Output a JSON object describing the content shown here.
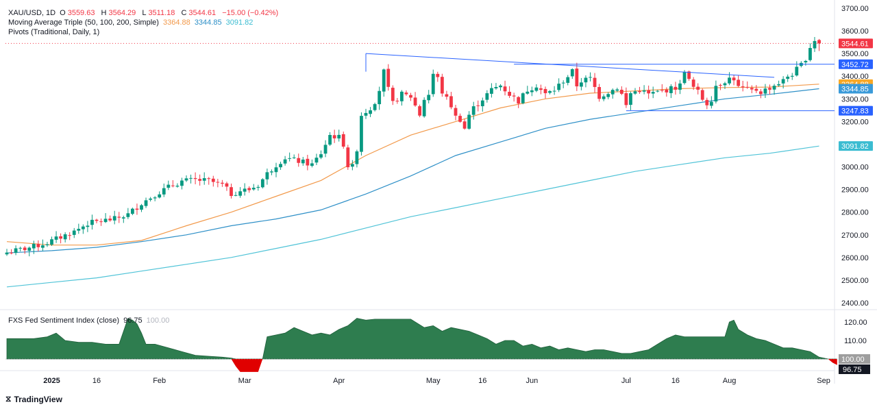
{
  "legend": {
    "symbol": "XAU/USD, 1D",
    "o_label": "O",
    "open": "3559.63",
    "h_label": "H",
    "high": "3564.29",
    "l_label": "L",
    "low": "3511.18",
    "c_label": "C",
    "close": "3544.61",
    "change": "−15.00 (−0.42%)",
    "ma_title": "Moving Average Triple (50, 100, 200, Simple)",
    "ma50": "3364.88",
    "ma100": "3344.85",
    "ma200": "3091.82",
    "pivots": "Pivots (Traditional, Daily, 1)",
    "sentiment_title": "FXS Fed Sentiment Index (close)",
    "sentiment_value": "96.75",
    "sentiment_ref": "100.00"
  },
  "watermark": "TradingView",
  "colors": {
    "up": "#089981",
    "down": "#f23645",
    "ma50": "#f2994a",
    "ma100": "#2d8fc7",
    "ma200": "#4fc3d7",
    "trend": "#2962ff",
    "sentiment_fill": "#2e7d4f",
    "sentiment_neg": "#e00000",
    "last_price": "#f23645",
    "pivot_label": "#2962ff",
    "ma50_label": "#f9a825",
    "ma100_label": "#3a9ad9",
    "ma200_label": "#3bbcd1"
  },
  "chart_data": {
    "type": "candlestick",
    "price_axis": {
      "ticks": [
        2400,
        2500,
        2600,
        2700,
        2800,
        2900,
        3000,
        3100,
        3200,
        3300,
        3400,
        3500,
        3600,
        3700
      ],
      "labels": [
        "2400.00",
        "2500.00",
        "2600.00",
        "2700.00",
        "2800.00",
        "2900.00",
        "3000.00",
        "3100.00",
        "3200.00",
        "3300.00",
        "3400.00",
        "3500.00",
        "3600.00",
        "3700.00"
      ]
    },
    "price_labels": [
      {
        "value": 3544.61,
        "text": "3544.61",
        "color": "#f23645"
      },
      {
        "value": 3452.72,
        "text": "3452.72",
        "color": "#2962ff"
      },
      {
        "value": 3364.88,
        "text": "3364.88",
        "color": "#f9a825"
      },
      {
        "value": 3344.85,
        "text": "3344.85",
        "color": "#3a9ad9"
      },
      {
        "value": 3247.83,
        "text": "3247.83",
        "color": "#2962ff"
      },
      {
        "value": 3091.82,
        "text": "3091.82",
        "color": "#3bbcd1"
      }
    ],
    "x_axis": [
      {
        "label": "2025",
        "bar": 10,
        "bold": true
      },
      {
        "label": "16",
        "bar": 20
      },
      {
        "label": "Feb",
        "bar": 34
      },
      {
        "label": "Mar",
        "bar": 53
      },
      {
        "label": "Apr",
        "bar": 74
      },
      {
        "label": "May",
        "bar": 95
      },
      {
        "label": "16",
        "bar": 106
      },
      {
        "label": "Jun",
        "bar": 117
      },
      {
        "label": "Jul",
        "bar": 138
      },
      {
        "label": "16",
        "bar": 149
      },
      {
        "label": "Aug",
        "bar": 161
      },
      {
        "label": "Sep",
        "bar": 182
      }
    ],
    "close_anchors": [
      [
        0,
        2622
      ],
      [
        3,
        2635
      ],
      [
        6,
        2648
      ],
      [
        9,
        2665
      ],
      [
        12,
        2690
      ],
      [
        15,
        2715
      ],
      [
        18,
        2750
      ],
      [
        21,
        2762
      ],
      [
        24,
        2770
      ],
      [
        27,
        2790
      ],
      [
        30,
        2840
      ],
      [
        33,
        2878
      ],
      [
        36,
        2910
      ],
      [
        39,
        2937
      ],
      [
        42,
        2942
      ],
      [
        45,
        2938
      ],
      [
        48,
        2920
      ],
      [
        50,
        2880
      ],
      [
        52,
        2895
      ],
      [
        54,
        2900
      ],
      [
        56,
        2920
      ],
      [
        58,
        2970
      ],
      [
        60,
        3010
      ],
      [
        62,
        3040
      ],
      [
        64,
        3030
      ],
      [
        66,
        3020
      ],
      [
        68,
        3010
      ],
      [
        70,
        3060
      ],
      [
        72,
        3140
      ],
      [
        74,
        3130
      ],
      [
        75,
        3100
      ],
      [
        76,
        3005
      ],
      [
        77,
        3000
      ],
      [
        78,
        3080
      ],
      [
        79,
        3230
      ],
      [
        81,
        3260
      ],
      [
        82,
        3290
      ],
      [
        83,
        3340
      ],
      [
        84,
        3420
      ],
      [
        85,
        3340
      ],
      [
        86,
        3280
      ],
      [
        88,
        3320
      ],
      [
        90,
        3310
      ],
      [
        91,
        3270
      ],
      [
        92,
        3230
      ],
      [
        93,
        3300
      ],
      [
        94,
        3320
      ],
      [
        95,
        3410
      ],
      [
        96,
        3390
      ],
      [
        97,
        3330
      ],
      [
        99,
        3270
      ],
      [
        100,
        3220
      ],
      [
        101,
        3210
      ],
      [
        102,
        3170
      ],
      [
        103,
        3230
      ],
      [
        104,
        3260
      ],
      [
        106,
        3300
      ],
      [
        108,
        3340
      ],
      [
        110,
        3360
      ],
      [
        112,
        3320
      ],
      [
        114,
        3290
      ],
      [
        116,
        3340
      ],
      [
        118,
        3360
      ],
      [
        120,
        3320
      ],
      [
        122,
        3340
      ],
      [
        124,
        3380
      ],
      [
        126,
        3420
      ],
      [
        127,
        3360
      ],
      [
        128,
        3380
      ],
      [
        130,
        3390
      ],
      [
        132,
        3310
      ],
      [
        134,
        3330
      ],
      [
        136,
        3350
      ],
      [
        137,
        3320
      ],
      [
        138,
        3270
      ],
      [
        139,
        3325
      ],
      [
        141,
        3340
      ],
      [
        143,
        3320
      ],
      [
        145,
        3330
      ],
      [
        147,
        3340
      ],
      [
        149,
        3350
      ],
      [
        150,
        3360
      ],
      [
        151,
        3430
      ],
      [
        152,
        3380
      ],
      [
        153,
        3350
      ],
      [
        154,
        3330
      ],
      [
        155,
        3300
      ],
      [
        156,
        3280
      ],
      [
        157,
        3300
      ],
      [
        158,
        3360
      ],
      [
        160,
        3380
      ],
      [
        161,
        3390
      ],
      [
        162,
        3390
      ],
      [
        163,
        3350
      ],
      [
        164,
        3345
      ],
      [
        165,
        3340
      ],
      [
        166,
        3335
      ],
      [
        167,
        3340
      ],
      [
        168,
        3330
      ],
      [
        169,
        3340
      ],
      [
        170,
        3350
      ],
      [
        171,
        3360
      ],
      [
        172,
        3370
      ],
      [
        173,
        3380
      ],
      [
        174,
        3400
      ],
      [
        175,
        3410
      ],
      [
        176,
        3430
      ],
      [
        177,
        3450
      ],
      [
        178,
        3480
      ],
      [
        179,
        3530
      ],
      [
        180,
        3560
      ],
      [
        181,
        3544.61
      ]
    ],
    "ma50": [
      [
        0,
        2670
      ],
      [
        10,
        2655
      ],
      [
        20,
        2655
      ],
      [
        30,
        2675
      ],
      [
        40,
        2740
      ],
      [
        50,
        2800
      ],
      [
        60,
        2870
      ],
      [
        70,
        2940
      ],
      [
        80,
        3050
      ],
      [
        90,
        3140
      ],
      [
        100,
        3200
      ],
      [
        110,
        3260
      ],
      [
        120,
        3300
      ],
      [
        130,
        3325
      ],
      [
        140,
        3335
      ],
      [
        150,
        3345
      ],
      [
        160,
        3350
      ],
      [
        170,
        3352
      ],
      [
        181,
        3364.88
      ]
    ],
    "ma100": [
      [
        0,
        2620
      ],
      [
        10,
        2630
      ],
      [
        20,
        2645
      ],
      [
        30,
        2670
      ],
      [
        40,
        2700
      ],
      [
        50,
        2740
      ],
      [
        60,
        2770
      ],
      [
        70,
        2810
      ],
      [
        80,
        2880
      ],
      [
        90,
        2960
      ],
      [
        100,
        3050
      ],
      [
        110,
        3110
      ],
      [
        120,
        3170
      ],
      [
        130,
        3210
      ],
      [
        140,
        3240
      ],
      [
        150,
        3270
      ],
      [
        160,
        3300
      ],
      [
        170,
        3320
      ],
      [
        181,
        3344.85
      ]
    ],
    "ma200": [
      [
        0,
        2470
      ],
      [
        10,
        2490
      ],
      [
        20,
        2510
      ],
      [
        30,
        2540
      ],
      [
        40,
        2570
      ],
      [
        50,
        2600
      ],
      [
        60,
        2640
      ],
      [
        70,
        2680
      ],
      [
        80,
        2730
      ],
      [
        90,
        2780
      ],
      [
        100,
        2820
      ],
      [
        110,
        2860
      ],
      [
        120,
        2900
      ],
      [
        130,
        2940
      ],
      [
        140,
        2980
      ],
      [
        150,
        3010
      ],
      [
        160,
        3040
      ],
      [
        170,
        3060
      ],
      [
        181,
        3091.82
      ]
    ],
    "trendlines": [
      {
        "from": [
          80,
          3500
        ],
        "to": [
          171,
          3395
        ]
      },
      {
        "from": [
          80,
          3500
        ],
        "to": [
          80,
          3420
        ]
      },
      {
        "from": [
          138,
          3247.83
        ],
        "to": [
          191,
          3247.83
        ]
      },
      {
        "from": [
          113,
          3452.72
        ],
        "to": [
          191,
          3452.72
        ]
      }
    ],
    "dotted_price": 3544.61,
    "sentiment": {
      "axis": {
        "ticks": [
          100,
          110,
          120
        ],
        "labels": [
          "100.00",
          "110.00",
          "120.00"
        ]
      },
      "value_label": {
        "value": 96.75,
        "text": "96.75"
      },
      "ref_label": {
        "value": 100.0,
        "text": "100.00"
      },
      "points": [
        [
          0,
          111
        ],
        [
          6,
          111
        ],
        [
          9,
          112
        ],
        [
          11,
          114
        ],
        [
          12,
          112
        ],
        [
          13,
          110
        ],
        [
          16,
          109
        ],
        [
          19,
          109
        ],
        [
          22,
          108
        ],
        [
          25,
          108
        ],
        [
          27,
          122
        ],
        [
          28,
          121
        ],
        [
          29,
          119
        ],
        [
          30,
          114
        ],
        [
          31,
          108
        ],
        [
          33,
          108
        ],
        [
          36,
          106
        ],
        [
          39,
          104
        ],
        [
          42,
          102
        ],
        [
          45,
          101.5
        ],
        [
          48,
          101
        ],
        [
          50,
          100.5
        ],
        [
          51,
          96
        ],
        [
          52,
          93
        ],
        [
          56,
          93
        ],
        [
          57,
          100
        ],
        [
          58,
          112
        ],
        [
          60,
          113
        ],
        [
          62,
          114
        ],
        [
          64,
          117
        ],
        [
          66,
          115
        ],
        [
          68,
          113
        ],
        [
          70,
          114
        ],
        [
          72,
          113
        ],
        [
          74,
          116
        ],
        [
          76,
          118
        ],
        [
          78,
          122
        ],
        [
          80,
          121
        ],
        [
          82,
          121.5
        ],
        [
          90,
          121.5
        ],
        [
          93,
          117
        ],
        [
          95,
          118
        ],
        [
          97,
          115
        ],
        [
          99,
          117
        ],
        [
          101,
          116
        ],
        [
          103,
          115
        ],
        [
          105,
          113
        ],
        [
          107,
          111
        ],
        [
          109,
          108
        ],
        [
          111,
          110
        ],
        [
          113,
          110
        ],
        [
          115,
          107
        ],
        [
          117,
          108
        ],
        [
          119,
          106
        ],
        [
          121,
          107
        ],
        [
          123,
          105
        ],
        [
          125,
          106
        ],
        [
          127,
          105
        ],
        [
          129,
          104
        ],
        [
          131,
          105
        ],
        [
          133,
          105
        ],
        [
          135,
          104
        ],
        [
          137,
          103
        ],
        [
          139,
          103
        ],
        [
          141,
          104
        ],
        [
          143,
          105
        ],
        [
          145,
          108
        ],
        [
          147,
          111
        ],
        [
          149,
          113
        ],
        [
          151,
          112
        ],
        [
          153,
          112
        ],
        [
          156,
          112
        ],
        [
          160,
          112
        ],
        [
          161,
          120
        ],
        [
          162,
          121
        ],
        [
          163,
          116
        ],
        [
          165,
          113
        ],
        [
          167,
          111
        ],
        [
          169,
          110
        ],
        [
          171,
          108
        ],
        [
          173,
          106
        ],
        [
          175,
          106
        ],
        [
          177,
          105
        ],
        [
          179,
          104
        ],
        [
          181,
          101
        ],
        [
          183,
          100
        ],
        [
          184,
          98
        ],
        [
          185,
          96.75
        ]
      ]
    }
  }
}
